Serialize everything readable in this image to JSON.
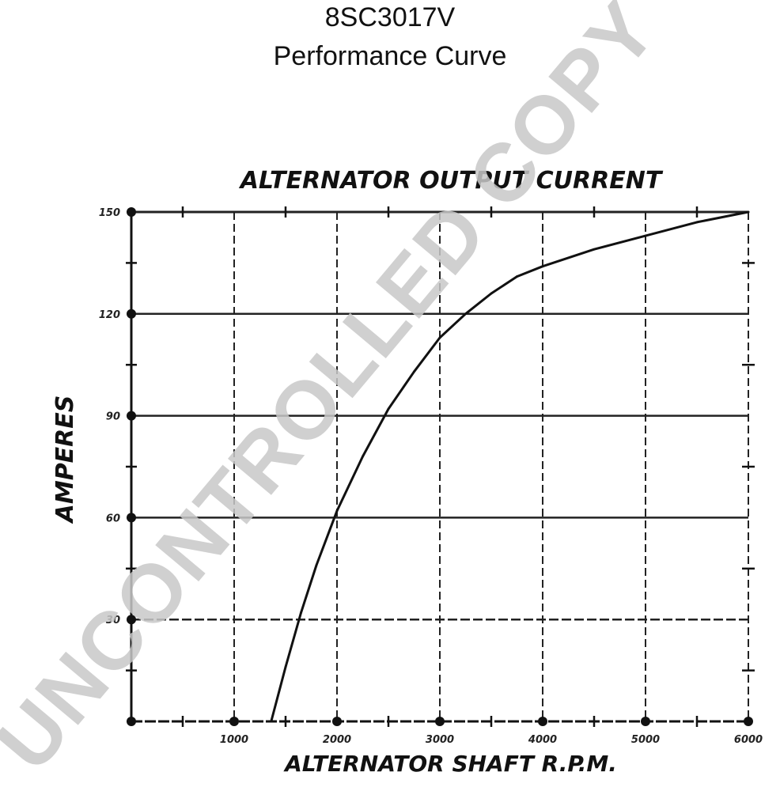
{
  "header": {
    "model": "8SC3017V",
    "subtitle": "Performance Curve"
  },
  "watermark": "UNCONTROLLED COPY",
  "chart_data": {
    "type": "line",
    "title": "ALTERNATOR OUTPUT CURRENT",
    "xlabel": "ALTERNATOR SHAFT R.P.M.",
    "ylabel": "AMPERES",
    "xlim": [
      0,
      6000
    ],
    "ylim": [
      0,
      150
    ],
    "x_ticks": [
      1000,
      2000,
      3000,
      4000,
      5000,
      6000
    ],
    "x_tick_labels": [
      "1000",
      "2000",
      "3000",
      "4000",
      "5000",
      "6000"
    ],
    "y_ticks": [
      30,
      60,
      90,
      120,
      150
    ],
    "y_tick_labels": [
      "30",
      "60",
      "90",
      "120",
      "150"
    ],
    "grid": true,
    "series": [
      {
        "name": "",
        "color": "#111111",
        "x": [
          1360,
          1500,
          1650,
          1800,
          2000,
          2250,
          2500,
          2750,
          3000,
          3250,
          3500,
          3750,
          4000,
          4500,
          5000,
          5500,
          6000
        ],
        "y": [
          0,
          16,
          32,
          46,
          62,
          78,
          92,
          103,
          113,
          120,
          126,
          131,
          134,
          139,
          143,
          147,
          150
        ]
      }
    ]
  }
}
